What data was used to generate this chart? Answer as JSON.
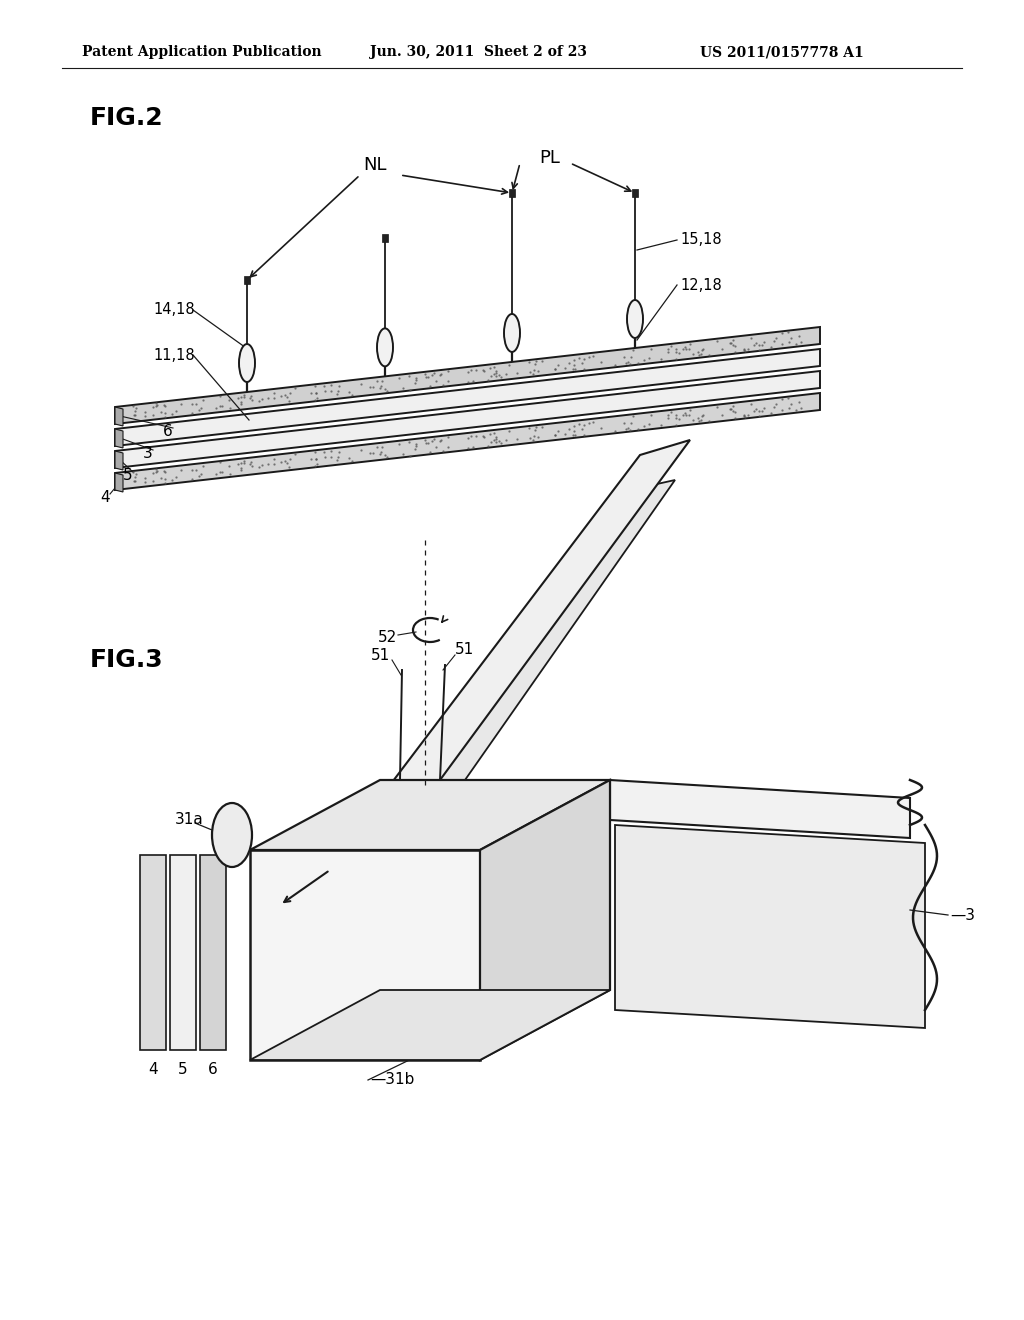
{
  "bg_color": "#ffffff",
  "line_color": "#1a1a1a",
  "text_color": "#000000",
  "header_left": "Patent Application Publication",
  "header_mid": "Jun. 30, 2011  Sheet 2 of 23",
  "header_right": "US 2011/0157778 A1",
  "fig2_label": "FIG.2",
  "fig3_label": "FIG.3"
}
